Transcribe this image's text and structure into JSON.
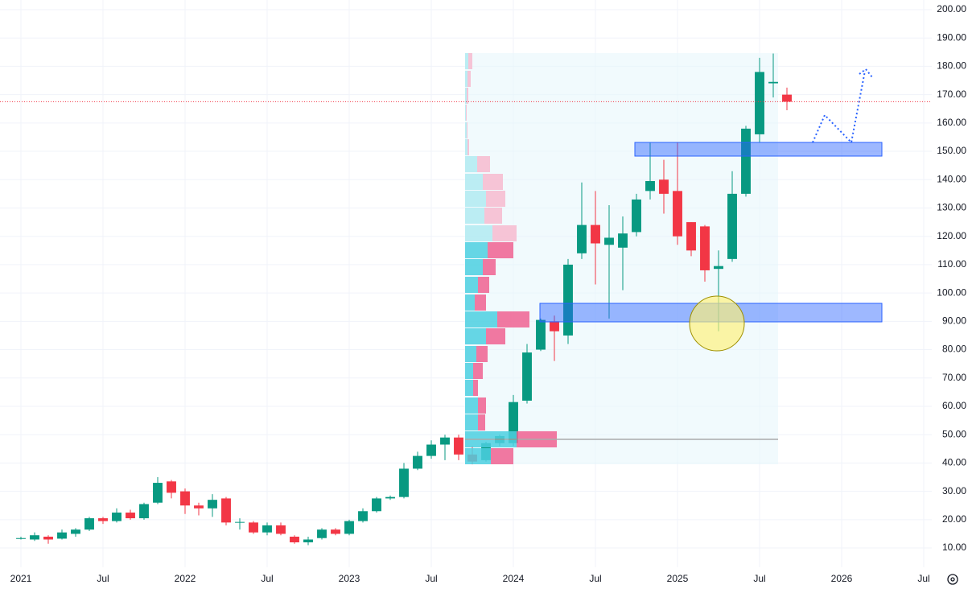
{
  "chart_data": {
    "type": "candlestick",
    "x": [
      "2021-01",
      "2021-02",
      "2021-03",
      "2021-04",
      "2021-05",
      "2021-06",
      "2021-07",
      "2021-08",
      "2021-09",
      "2021-10",
      "2021-11",
      "2021-12",
      "2022-01",
      "2022-02",
      "2022-03",
      "2022-04",
      "2022-05",
      "2022-06",
      "2022-07",
      "2022-08",
      "2022-09",
      "2022-10",
      "2022-11",
      "2022-12",
      "2023-01",
      "2023-02",
      "2023-03",
      "2023-04",
      "2023-05",
      "2023-06",
      "2023-07",
      "2023-08",
      "2023-09",
      "2023-10",
      "2023-11",
      "2023-12",
      "2024-01",
      "2024-02",
      "2024-03",
      "2024-04",
      "2024-05",
      "2024-06",
      "2024-07",
      "2024-08",
      "2024-09",
      "2024-10",
      "2024-11",
      "2024-12",
      "2025-01",
      "2025-02",
      "2025-03",
      "2025-04",
      "2025-05",
      "2025-06",
      "2025-07",
      "2025-08",
      "2025-09"
    ],
    "open": [
      13.2,
      13,
      14,
      13.3,
      15,
      16.5,
      20.5,
      19.5,
      22.5,
      20.5,
      26,
      33.5,
      30,
      25,
      24,
      27.5,
      19,
      19,
      15.5,
      18,
      14,
      12,
      13.5,
      16.5,
      15,
      19.5,
      23,
      27.5,
      28,
      38,
      42.5,
      46.5,
      49,
      43,
      41,
      47,
      47,
      62,
      80,
      90,
      85,
      114,
      124,
      117,
      116,
      121.5,
      136,
      140,
      136,
      125,
      123.5,
      108.5,
      112,
      135,
      156,
      174,
      170
    ],
    "high": [
      14,
      15.5,
      14.5,
      16.5,
      17,
      21,
      21,
      24,
      23.5,
      26,
      35,
      34,
      31,
      26,
      29,
      28,
      20.5,
      19.5,
      19,
      19,
      14.5,
      14,
      17,
      17,
      20,
      24,
      28,
      28.5,
      40,
      44,
      48,
      50,
      50,
      46,
      47.5,
      50,
      64,
      82,
      91,
      92,
      112,
      139,
      136,
      131,
      127,
      135,
      153,
      147,
      153,
      125,
      124,
      115,
      143,
      159,
      183,
      184.5,
      172.5
    ],
    "low": [
      13,
      12.5,
      11.5,
      13,
      14,
      16,
      18.5,
      19,
      20,
      20,
      25.5,
      27.5,
      22,
      21.5,
      21,
      18,
      16.5,
      15,
      14.5,
      14.5,
      11.5,
      11,
      13,
      14.5,
      14.5,
      19,
      22.5,
      27,
      27.5,
      37.5,
      41.5,
      41,
      41,
      39.5,
      40.5,
      46,
      46,
      61,
      79.5,
      76,
      82,
      112,
      103,
      91,
      101,
      120,
      133,
      128,
      117,
      113,
      104,
      86.5,
      111,
      134,
      153,
      169,
      164.5
    ],
    "close": [
      13.5,
      14.5,
      13,
      15.5,
      16.5,
      20.5,
      19.5,
      22.5,
      20.5,
      25.5,
      33,
      29.5,
      25,
      24,
      27,
      19,
      19.2,
      15.5,
      18,
      15,
      12,
      13,
      16.5,
      15,
      19.5,
      23,
      27.5,
      28,
      38,
      42.5,
      46.5,
      49,
      43,
      40.5,
      47,
      49.5,
      61.5,
      79,
      90.5,
      86.5,
      110,
      124,
      117.5,
      119.5,
      121,
      133,
      139.5,
      135,
      120,
      115,
      108,
      109.5,
      135,
      158,
      178,
      174.5,
      167.5
    ],
    "up_color": "#089981",
    "down_color": "#f23645",
    "xlim": [
      "2020-11",
      "2026-08"
    ],
    "xticks": [
      {
        "value": "2021-01",
        "label": "2021"
      },
      {
        "value": "2021-07",
        "label": "Jul"
      },
      {
        "value": "2022-01",
        "label": "2022"
      },
      {
        "value": "2022-07",
        "label": "Jul"
      },
      {
        "value": "2023-01",
        "label": "2023"
      },
      {
        "value": "2023-07",
        "label": "Jul"
      },
      {
        "value": "2024-01",
        "label": "2024"
      },
      {
        "value": "2024-07",
        "label": "Jul"
      },
      {
        "value": "2025-01",
        "label": "2025"
      },
      {
        "value": "2025-07",
        "label": "Jul"
      },
      {
        "value": "2026-01",
        "label": "2026"
      },
      {
        "value": "2026-07",
        "label": "Jul"
      }
    ],
    "ylim": [
      3.2,
      203.4
    ],
    "yticks": [
      {
        "value": 10,
        "label": "10.00"
      },
      {
        "value": 20,
        "label": "20.00"
      },
      {
        "value": 30,
        "label": "30.00"
      },
      {
        "value": 40,
        "label": "40.00"
      },
      {
        "value": 50,
        "label": "50.00"
      },
      {
        "value": 60,
        "label": "60.00"
      },
      {
        "value": 70,
        "label": "70.00"
      },
      {
        "value": 80,
        "label": "80.00"
      },
      {
        "value": 90,
        "label": "90.00"
      },
      {
        "value": 100,
        "label": "100.00"
      },
      {
        "value": 110,
        "label": "110.00"
      },
      {
        "value": 120,
        "label": "120.00"
      },
      {
        "value": 130,
        "label": "130.00"
      },
      {
        "value": 140,
        "label": "140.00"
      },
      {
        "value": 150,
        "label": "150.00"
      },
      {
        "value": 160,
        "label": "160.00"
      },
      {
        "value": 170,
        "label": "170.00"
      },
      {
        "value": 180,
        "label": "180.00"
      },
      {
        "value": 190,
        "label": "190.00"
      },
      {
        "value": 200,
        "label": "200.00"
      }
    ],
    "grid": true
  }
}
